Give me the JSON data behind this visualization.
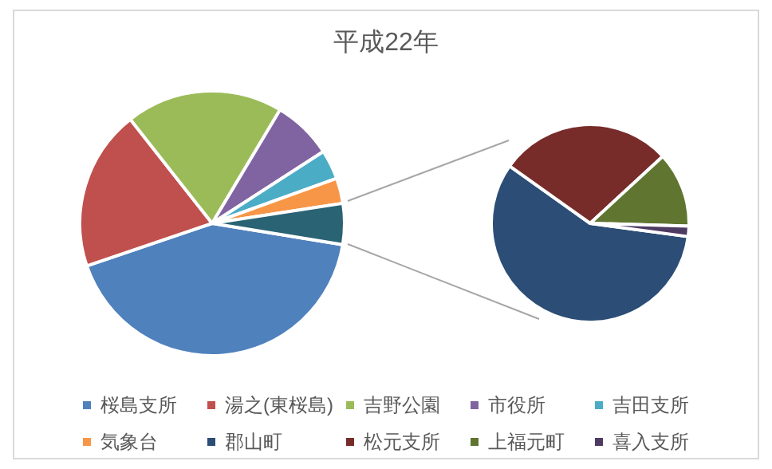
{
  "chart_data": [
    {
      "type": "pie",
      "title": "平成22年",
      "legend": "bottom",
      "categories": [
        "桜島支所",
        "湯之(東桜島)",
        "吉野公園",
        "市役所",
        "吉田支所",
        "気象台",
        null
      ],
      "values": [
        42.2,
        19.6,
        19.2,
        7.3,
        3.6,
        3.1,
        5.0
      ],
      "colors": [
        "#4f81bd",
        "#c0504d",
        "#9bbb59",
        "#8064a2",
        "#4bacc6",
        "#f79646",
        "#2a6373"
      ]
    },
    {
      "type": "pie",
      "legend": "bottom",
      "categories": [
        "郡山町",
        "松元支所",
        "上福元町",
        "喜入支所"
      ],
      "values": [
        57.7,
        28.3,
        12.3,
        1.7
      ],
      "colors": [
        "#2c4d75",
        "#772c2a",
        "#5f7530",
        "#4d3b62"
      ]
    }
  ]
}
